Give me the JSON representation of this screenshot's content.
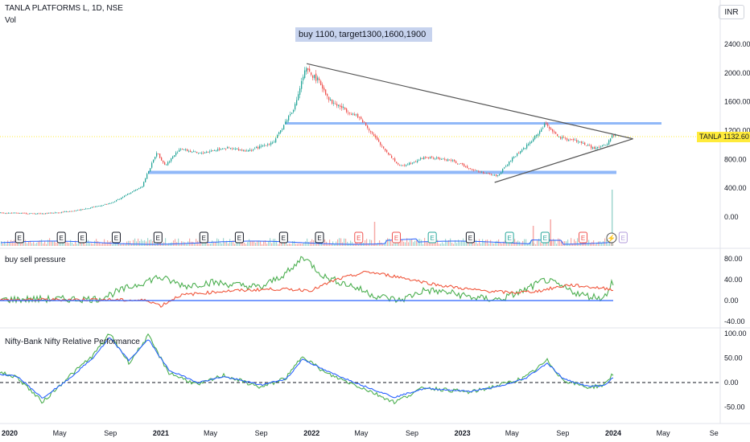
{
  "header": {
    "title": "TANLA PLATFORMS L, 1D, NSE",
    "volume_label": "Vol",
    "currency": "INR"
  },
  "annotation": {
    "note": "buy 1100, target1300,1600,1900"
  },
  "last_price": {
    "ticker": "TANLA",
    "value": "1132.60",
    "color": "#ffeb3b"
  },
  "colors": {
    "up": "#26a69a",
    "down": "#ef5350",
    "horizontal_levels": "#90b8f8",
    "trendline": "#555555",
    "pressure_buy": "#4caf50",
    "pressure_sell": "#f0573d",
    "rel_perf_fast": "#4caf50",
    "rel_perf_slow": "#2962ff"
  },
  "chart_data": [
    {
      "type": "candlestick",
      "title": "TANLA PLATFORMS L, 1D, NSE",
      "y_ticks": [
        "2400.00",
        "2000.00",
        "1600.00",
        "1200.00",
        "800.00",
        "400.00",
        "0.00"
      ],
      "ylim": [
        -80,
        2500
      ],
      "x_ticks": [
        "2020",
        "May",
        "Sep",
        "2021",
        "May",
        "Sep",
        "2022",
        "May",
        "Sep",
        "2023",
        "May",
        "Sep",
        "2024",
        "May",
        "Se"
      ],
      "x_tick_dates": [
        "2020-01",
        "2020-05",
        "2020-09",
        "2021-01",
        "2021-05",
        "2021-09",
        "2022-01",
        "2022-05",
        "2022-09",
        "2023-01",
        "2023-05",
        "2023-09",
        "2024-01",
        "2024-05",
        "2024-09"
      ],
      "price_path": [
        {
          "date": "2019-12-01",
          "close": 60
        },
        {
          "date": "2020-03-15",
          "close": 45
        },
        {
          "date": "2020-06-01",
          "close": 80
        },
        {
          "date": "2020-09-01",
          "close": 190
        },
        {
          "date": "2020-11-15",
          "close": 430
        },
        {
          "date": "2020-12-20",
          "close": 900
        },
        {
          "date": "2021-01-10",
          "close": 720
        },
        {
          "date": "2021-02-15",
          "close": 950
        },
        {
          "date": "2021-04-01",
          "close": 880
        },
        {
          "date": "2021-06-01",
          "close": 960
        },
        {
          "date": "2021-08-01",
          "close": 920
        },
        {
          "date": "2021-10-01",
          "close": 1050
        },
        {
          "date": "2021-11-20",
          "close": 1550
        },
        {
          "date": "2021-12-15",
          "close": 2050
        },
        {
          "date": "2022-01-15",
          "close": 1900
        },
        {
          "date": "2022-02-15",
          "close": 1600
        },
        {
          "date": "2022-03-20",
          "close": 1500
        },
        {
          "date": "2022-05-01",
          "close": 1350
        },
        {
          "date": "2022-06-15",
          "close": 1000
        },
        {
          "date": "2022-08-01",
          "close": 700
        },
        {
          "date": "2022-10-01",
          "close": 830
        },
        {
          "date": "2022-12-01",
          "close": 790
        },
        {
          "date": "2023-02-01",
          "close": 640
        },
        {
          "date": "2023-03-25",
          "close": 570
        },
        {
          "date": "2023-05-01",
          "close": 820
        },
        {
          "date": "2023-06-15",
          "close": 1050
        },
        {
          "date": "2023-07-20",
          "close": 1300
        },
        {
          "date": "2023-08-20",
          "close": 1100
        },
        {
          "date": "2023-10-01",
          "close": 1060
        },
        {
          "date": "2023-11-15",
          "close": 950
        },
        {
          "date": "2023-12-15",
          "close": 1000
        },
        {
          "date": "2023-12-28",
          "close": 1133
        }
      ],
      "horizontal_levels": [
        1300,
        620
      ],
      "trendlines": [
        {
          "from": {
            "date": "2021-12-20",
            "price": 2130
          },
          "to": {
            "date": "2024-01-10",
            "price": 1030
          }
        },
        {
          "from": {
            "date": "2023-03-20",
            "price": 480
          },
          "to": {
            "date": "2024-01-10",
            "price": 1030
          }
        }
      ],
      "volume_spikes": [
        {
          "date": "2022-06-01",
          "value": 0.3
        },
        {
          "date": "2023-06-20",
          "value": 0.25
        },
        {
          "date": "2023-08-01",
          "value": 0.33
        },
        {
          "date": "2023-12-28",
          "value": 0.7
        }
      ],
      "events": [
        {
          "date": "2020-01-25",
          "label": "E",
          "kind": "neutral"
        },
        {
          "date": "2020-05-05",
          "label": "E",
          "kind": "neutral"
        },
        {
          "date": "2020-06-25",
          "label": "E",
          "kind": "neutral"
        },
        {
          "date": "2020-09-15",
          "label": "E",
          "kind": "neutral"
        },
        {
          "date": "2020-12-25",
          "label": "E",
          "kind": "neutral"
        },
        {
          "date": "2021-04-15",
          "label": "E",
          "kind": "neutral"
        },
        {
          "date": "2021-07-10",
          "label": "E",
          "kind": "neutral"
        },
        {
          "date": "2021-10-25",
          "label": "E",
          "kind": "neutral"
        },
        {
          "date": "2022-01-20",
          "label": "E",
          "kind": "neutral"
        },
        {
          "date": "2022-04-25",
          "label": "E",
          "kind": "bad"
        },
        {
          "date": "2022-07-25",
          "label": "E",
          "kind": "bad"
        },
        {
          "date": "2022-10-20",
          "label": "E",
          "kind": "good"
        },
        {
          "date": "2023-01-20",
          "label": "E",
          "kind": "neutral"
        },
        {
          "date": "2023-04-25",
          "label": "E",
          "kind": "good"
        },
        {
          "date": "2023-07-20",
          "label": "E",
          "kind": "good"
        },
        {
          "date": "2023-10-20",
          "label": "E",
          "kind": "bad"
        },
        {
          "date": "2023-12-28",
          "label": "⚡",
          "kind": "dividend"
        },
        {
          "date": "2024-01-25",
          "label": "E",
          "kind": "future"
        }
      ]
    },
    {
      "type": "line",
      "title": "buy sell pressure",
      "y_ticks": [
        "80.00",
        "40.00",
        "0.00",
        "-40.00"
      ],
      "ylim": [
        -45,
        90
      ],
      "series": [
        {
          "role": "buy",
          "color": "#4caf50",
          "path": [
            {
              "date": "2019-12-01",
              "v": 2
            },
            {
              "date": "2020-08-01",
              "v": 3
            },
            {
              "date": "2020-11-01",
              "v": 30
            },
            {
              "date": "2020-12-25",
              "v": 45
            },
            {
              "date": "2021-03-01",
              "v": 28
            },
            {
              "date": "2021-05-01",
              "v": 35
            },
            {
              "date": "2021-09-01",
              "v": 25
            },
            {
              "date": "2021-11-15",
              "v": 60
            },
            {
              "date": "2021-12-10",
              "v": 85
            },
            {
              "date": "2022-02-01",
              "v": 45
            },
            {
              "date": "2022-04-01",
              "v": 30
            },
            {
              "date": "2022-06-01",
              "v": 10
            },
            {
              "date": "2022-08-01",
              "v": 0
            },
            {
              "date": "2022-10-01",
              "v": 20
            },
            {
              "date": "2022-12-01",
              "v": 15
            },
            {
              "date": "2023-02-01",
              "v": 5
            },
            {
              "date": "2023-04-01",
              "v": 2
            },
            {
              "date": "2023-06-01",
              "v": 20
            },
            {
              "date": "2023-07-20",
              "v": 40
            },
            {
              "date": "2023-09-01",
              "v": 25
            },
            {
              "date": "2023-10-20",
              "v": 10
            },
            {
              "date": "2023-12-10",
              "v": 5
            },
            {
              "date": "2023-12-28",
              "v": 35
            }
          ]
        },
        {
          "role": "sell",
          "color": "#f0573d",
          "path": [
            {
              "date": "2019-12-01",
              "v": 1
            },
            {
              "date": "2020-08-01",
              "v": 2
            },
            {
              "date": "2020-12-01",
              "v": 0
            },
            {
              "date": "2021-01-01",
              "v": -10
            },
            {
              "date": "2021-02-15",
              "v": 10
            },
            {
              "date": "2021-06-01",
              "v": 18
            },
            {
              "date": "2021-10-01",
              "v": 22
            },
            {
              "date": "2022-01-01",
              "v": 20
            },
            {
              "date": "2022-03-01",
              "v": 40
            },
            {
              "date": "2022-05-15",
              "v": 55
            },
            {
              "date": "2022-08-01",
              "v": 45
            },
            {
              "date": "2022-11-01",
              "v": 30
            },
            {
              "date": "2023-02-01",
              "v": 20
            },
            {
              "date": "2023-05-01",
              "v": 15
            },
            {
              "date": "2023-07-01",
              "v": 18
            },
            {
              "date": "2023-09-15",
              "v": 30
            },
            {
              "date": "2023-12-28",
              "v": 22
            }
          ]
        },
        {
          "role": "zero",
          "color": "#2962ff",
          "path": [
            {
              "date": "2019-12-01",
              "v": 0
            },
            {
              "date": "2023-12-28",
              "v": 0
            }
          ]
        }
      ]
    },
    {
      "type": "line",
      "title": "Nifty-Bank Nifty Relative Performance",
      "y_ticks": [
        "100.00",
        "50.00",
        "0.00",
        "-50.00"
      ],
      "ylim": [
        -65,
        115
      ],
      "series": [
        {
          "role": "fast",
          "color": "#4caf50",
          "path": [
            {
              "date": "2019-12-01",
              "v": 22
            },
            {
              "date": "2020-01-20",
              "v": 10
            },
            {
              "date": "2020-03-20",
              "v": -40
            },
            {
              "date": "2020-05-20",
              "v": 10
            },
            {
              "date": "2020-07-20",
              "v": 55
            },
            {
              "date": "2020-08-30",
              "v": 100
            },
            {
              "date": "2020-10-15",
              "v": 40
            },
            {
              "date": "2020-12-01",
              "v": 95
            },
            {
              "date": "2021-01-20",
              "v": 20
            },
            {
              "date": "2021-04-01",
              "v": -5
            },
            {
              "date": "2021-06-01",
              "v": 15
            },
            {
              "date": "2021-09-01",
              "v": -10
            },
            {
              "date": "2021-11-01",
              "v": 10
            },
            {
              "date": "2021-12-10",
              "v": 55
            },
            {
              "date": "2022-02-01",
              "v": 20
            },
            {
              "date": "2022-05-01",
              "v": -10
            },
            {
              "date": "2022-07-20",
              "v": -40
            },
            {
              "date": "2022-10-01",
              "v": -10
            },
            {
              "date": "2023-01-20",
              "v": -20
            },
            {
              "date": "2023-04-01",
              "v": -5
            },
            {
              "date": "2023-06-01",
              "v": 10
            },
            {
              "date": "2023-07-25",
              "v": 45
            },
            {
              "date": "2023-09-01",
              "v": 5
            },
            {
              "date": "2023-11-01",
              "v": -10
            },
            {
              "date": "2023-12-10",
              "v": -5
            },
            {
              "date": "2023-12-28",
              "v": 15
            }
          ]
        },
        {
          "role": "slow",
          "color": "#2962ff",
          "path": [
            {
              "date": "2019-12-01",
              "v": 18
            },
            {
              "date": "2020-01-20",
              "v": 12
            },
            {
              "date": "2020-03-20",
              "v": -32
            },
            {
              "date": "2020-05-20",
              "v": 5
            },
            {
              "date": "2020-07-20",
              "v": 50
            },
            {
              "date": "2020-08-30",
              "v": 92
            },
            {
              "date": "2020-10-15",
              "v": 45
            },
            {
              "date": "2020-12-01",
              "v": 88
            },
            {
              "date": "2021-01-20",
              "v": 25
            },
            {
              "date": "2021-04-01",
              "v": 0
            },
            {
              "date": "2021-06-01",
              "v": 12
            },
            {
              "date": "2021-09-01",
              "v": -5
            },
            {
              "date": "2021-11-01",
              "v": 8
            },
            {
              "date": "2021-12-10",
              "v": 48
            },
            {
              "date": "2022-02-01",
              "v": 25
            },
            {
              "date": "2022-05-01",
              "v": -5
            },
            {
              "date": "2022-07-20",
              "v": -30
            },
            {
              "date": "2022-10-01",
              "v": -12
            },
            {
              "date": "2023-01-20",
              "v": -18
            },
            {
              "date": "2023-04-01",
              "v": -8
            },
            {
              "date": "2023-06-01",
              "v": 8
            },
            {
              "date": "2023-07-25",
              "v": 40
            },
            {
              "date": "2023-09-01",
              "v": 8
            },
            {
              "date": "2023-11-01",
              "v": -8
            },
            {
              "date": "2023-12-10",
              "v": -6
            },
            {
              "date": "2023-12-28",
              "v": 8
            }
          ]
        }
      ]
    }
  ]
}
